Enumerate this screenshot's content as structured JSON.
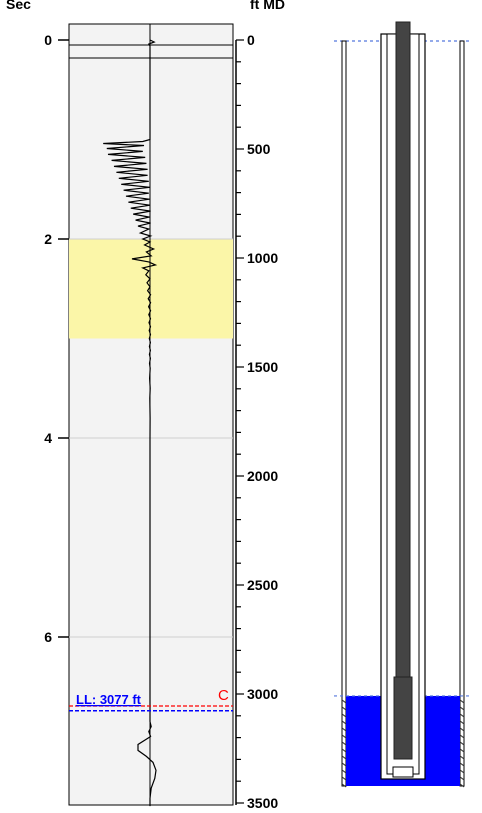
{
  "chart_data": {
    "type": "line",
    "left_axis": {
      "title": "Sec",
      "ticks": [
        "0",
        "2",
        "4",
        "6"
      ],
      "tick_values": [
        0,
        2,
        4,
        6
      ],
      "range": [
        0,
        7.7
      ]
    },
    "right_axis": {
      "title": "ft MD",
      "ticks": [
        "0",
        "500",
        "1000",
        "1500",
        "2000",
        "2500",
        "3000",
        "3500"
      ],
      "tick_values": [
        0,
        500,
        1000,
        1500,
        2000,
        2500,
        3000,
        3500
      ],
      "range": [
        0,
        3500
      ]
    },
    "grid": true,
    "highlight_band": {
      "from_sec": 2.0,
      "to_sec": 3.0,
      "color": "#fbf6a8"
    },
    "liquid_level": {
      "label": "LL: 3077 ft",
      "value_ft": 3077,
      "color": "#0000ff"
    },
    "collar_marker": {
      "label": "C",
      "value_ft": 3055,
      "color": "#ff0000"
    },
    "series": [
      {
        "type": "acoustic-trace",
        "color": "#000000",
        "points": [
          [
            0.0,
            0.0
          ],
          [
            0.02,
            0.35
          ],
          [
            0.04,
            -0.1
          ],
          [
            0.06,
            0.0
          ],
          [
            1.0,
            0.0
          ],
          [
            1.02,
            -0.6
          ],
          [
            1.04,
            -3.9
          ],
          [
            1.06,
            -0.5
          ],
          [
            1.09,
            -3.6
          ],
          [
            1.12,
            -0.6
          ],
          [
            1.15,
            -3.5
          ],
          [
            1.18,
            -0.4
          ],
          [
            1.21,
            -3.2
          ],
          [
            1.24,
            -0.3
          ],
          [
            1.27,
            -3.0
          ],
          [
            1.3,
            -0.2
          ],
          [
            1.33,
            -2.8
          ],
          [
            1.36,
            -0.2
          ],
          [
            1.39,
            -2.6
          ],
          [
            1.42,
            -0.1
          ],
          [
            1.45,
            -2.4
          ],
          [
            1.48,
            0.0
          ],
          [
            1.51,
            -2.2
          ],
          [
            1.54,
            -0.1
          ],
          [
            1.57,
            -2.0
          ],
          [
            1.6,
            -0.05
          ],
          [
            1.63,
            -1.8
          ],
          [
            1.66,
            0.0
          ],
          [
            1.69,
            -1.6
          ],
          [
            1.72,
            0.05
          ],
          [
            1.75,
            -1.4
          ],
          [
            1.78,
            -0.05
          ],
          [
            1.81,
            -1.2
          ],
          [
            1.84,
            0.05
          ],
          [
            1.87,
            -1.0
          ],
          [
            1.9,
            -0.1
          ],
          [
            1.94,
            -0.8
          ],
          [
            1.97,
            0.05
          ],
          [
            2.0,
            -0.6
          ],
          [
            2.03,
            0.0
          ],
          [
            2.06,
            -0.45
          ],
          [
            2.1,
            0.3
          ],
          [
            2.13,
            -0.3
          ],
          [
            2.17,
            0.1
          ],
          [
            2.2,
            -1.5
          ],
          [
            2.23,
            -0.1
          ],
          [
            2.26,
            0.45
          ],
          [
            2.29,
            -0.6
          ],
          [
            2.32,
            -0.1
          ],
          [
            2.36,
            -0.35
          ],
          [
            2.4,
            0.0
          ],
          [
            2.44,
            -0.25
          ],
          [
            2.48,
            0.0
          ],
          [
            2.52,
            -0.2
          ],
          [
            2.56,
            0.05
          ],
          [
            2.6,
            -0.15
          ],
          [
            2.64,
            0.05
          ],
          [
            2.68,
            -0.12
          ],
          [
            2.72,
            0.05
          ],
          [
            2.76,
            -0.1
          ],
          [
            2.8,
            0.04
          ],
          [
            2.84,
            -0.08
          ],
          [
            2.88,
            0.04
          ],
          [
            2.92,
            -0.07
          ],
          [
            2.96,
            0.04
          ],
          [
            3.0,
            -0.06
          ],
          [
            3.04,
            0.03
          ],
          [
            3.08,
            -0.05
          ],
          [
            3.12,
            0.03
          ],
          [
            3.16,
            -0.05
          ],
          [
            3.2,
            0.03
          ],
          [
            3.25,
            -0.04
          ],
          [
            3.3,
            0.02
          ],
          [
            3.4,
            -0.03
          ],
          [
            3.5,
            0.02
          ],
          [
            3.6,
            -0.02
          ],
          [
            3.8,
            0.01
          ],
          [
            4.0,
            0.0
          ],
          [
            4.5,
            0.0
          ],
          [
            5.0,
            0.0
          ],
          [
            5.5,
            0.0
          ],
          [
            6.0,
            0.0
          ],
          [
            6.5,
            0.0
          ],
          [
            6.85,
            0.0
          ],
          [
            6.9,
            0.1
          ],
          [
            6.95,
            -0.1
          ],
          [
            7.0,
            0.05
          ],
          [
            7.08,
            -1.0
          ],
          [
            7.14,
            -1.0
          ],
          [
            7.2,
            -0.3
          ],
          [
            7.26,
            0.25
          ],
          [
            7.34,
            0.5
          ],
          [
            7.42,
            0.4
          ],
          [
            7.52,
            0.1
          ],
          [
            7.62,
            0.0
          ],
          [
            7.7,
            0.0
          ]
        ]
      }
    ]
  },
  "wellbore": {
    "liquid_level_ft": 3077,
    "bottom_ft": 3500,
    "liquid_color": "#0000ff",
    "tubing_color": "#444444"
  }
}
